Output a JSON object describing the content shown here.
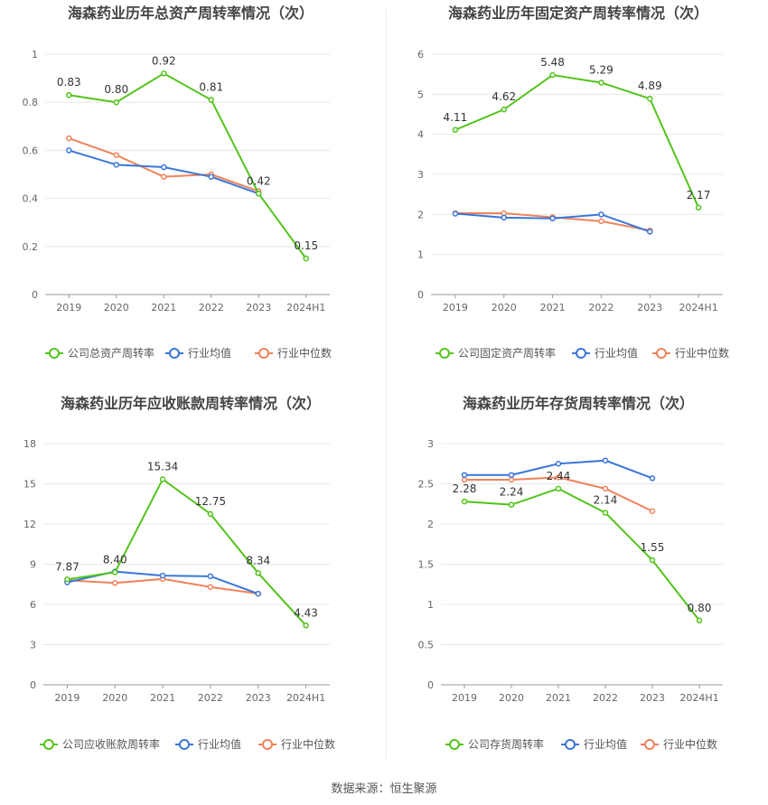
{
  "source_label": "数据来源：恒生聚源",
  "colors": {
    "company": "#52c41a",
    "avg": "#3a76d8",
    "median": "#f0825a",
    "grid": "#e8e8e8",
    "axis": "#999999",
    "title": "#444444"
  },
  "chart_data": [
    {
      "type": "line",
      "title": "海森药业历年总资产周转率情况（次）",
      "categories": [
        "2019",
        "2020",
        "2021",
        "2022",
        "2023",
        "2024H1"
      ],
      "ylim": [
        0,
        1
      ],
      "yticks": [
        "0",
        "0.2",
        "0.4",
        "0.6",
        "0.8",
        "1"
      ],
      "ytick_values": [
        0,
        0.2,
        0.4,
        0.6,
        0.8,
        1
      ],
      "grid": true,
      "legend_position": "bottom",
      "series": [
        {
          "name": "公司总资产周转率",
          "role": "company",
          "values": [
            0.83,
            0.8,
            0.92,
            0.81,
            0.42,
            0.15
          ],
          "labels": [
            "0.83",
            "0.80",
            "0.92",
            "0.81",
            "0.42",
            "0.15"
          ]
        },
        {
          "name": "行业均值",
          "role": "avg",
          "values": [
            0.6,
            0.54,
            0.53,
            0.49,
            0.42,
            null
          ]
        },
        {
          "name": "行业中位数",
          "role": "median",
          "values": [
            0.65,
            0.58,
            0.49,
            0.5,
            0.43,
            null
          ]
        }
      ]
    },
    {
      "type": "line",
      "title": "海森药业历年固定资产周转率情况（次）",
      "categories": [
        "2019",
        "2020",
        "2021",
        "2022",
        "2023",
        "2024H1"
      ],
      "ylim": [
        0,
        6
      ],
      "yticks": [
        "0",
        "1",
        "2",
        "3",
        "4",
        "5",
        "6"
      ],
      "ytick_values": [
        0,
        1,
        2,
        3,
        4,
        5,
        6
      ],
      "grid": true,
      "legend_position": "bottom",
      "series": [
        {
          "name": "公司固定资产周转率",
          "role": "company",
          "values": [
            4.11,
            4.62,
            5.48,
            5.29,
            4.89,
            2.17
          ],
          "labels": [
            "4.11",
            "4.62",
            "5.48",
            "5.29",
            "4.89",
            "2.17"
          ]
        },
        {
          "name": "行业均值",
          "role": "avg",
          "values": [
            2.02,
            1.92,
            1.9,
            2.0,
            1.57,
            null
          ]
        },
        {
          "name": "行业中位数",
          "role": "median",
          "values": [
            2.03,
            2.03,
            1.93,
            1.83,
            1.6,
            null
          ]
        }
      ]
    },
    {
      "type": "line",
      "title": "海森药业历年应收账款周转率情况（次）",
      "categories": [
        "2019",
        "2020",
        "2021",
        "2022",
        "2023",
        "2024H1"
      ],
      "ylim": [
        0,
        18
      ],
      "yticks": [
        "0",
        "3",
        "6",
        "9",
        "12",
        "15",
        "18"
      ],
      "ytick_values": [
        0,
        3,
        6,
        9,
        12,
        15,
        18
      ],
      "grid": true,
      "legend_position": "bottom",
      "series": [
        {
          "name": "公司应收账款周转率",
          "role": "company",
          "values": [
            7.87,
            8.4,
            15.34,
            12.75,
            8.34,
            4.43
          ],
          "labels": [
            "7.87",
            "8.40",
            "15.34",
            "12.75",
            "8.34",
            "4.43"
          ]
        },
        {
          "name": "行业均值",
          "role": "avg",
          "values": [
            7.65,
            8.45,
            8.15,
            8.1,
            6.8,
            null
          ]
        },
        {
          "name": "行业中位数",
          "role": "median",
          "values": [
            7.8,
            7.6,
            7.9,
            7.3,
            6.8,
            null
          ]
        }
      ]
    },
    {
      "type": "line",
      "title": "海森药业历年存货周转率情况（次）",
      "categories": [
        "2019",
        "2020",
        "2021",
        "2022",
        "2023",
        "2024H1"
      ],
      "ylim": [
        0,
        3
      ],
      "yticks": [
        "0",
        "0.5",
        "1",
        "1.5",
        "2",
        "2.5",
        "3"
      ],
      "ytick_values": [
        0,
        0.5,
        1,
        1.5,
        2,
        2.5,
        3
      ],
      "grid": true,
      "legend_position": "bottom",
      "series": [
        {
          "name": "公司存货周转率",
          "role": "company",
          "values": [
            2.28,
            2.24,
            2.44,
            2.14,
            1.55,
            0.8
          ],
          "labels": [
            "2.28",
            "2.24",
            "2.44",
            "2.14",
            "1.55",
            "0.80"
          ]
        },
        {
          "name": "行业均值",
          "role": "avg",
          "values": [
            2.61,
            2.61,
            2.75,
            2.79,
            2.57,
            null
          ]
        },
        {
          "name": "行业中位数",
          "role": "median",
          "values": [
            2.55,
            2.55,
            2.58,
            2.44,
            2.16,
            null
          ]
        }
      ]
    }
  ]
}
